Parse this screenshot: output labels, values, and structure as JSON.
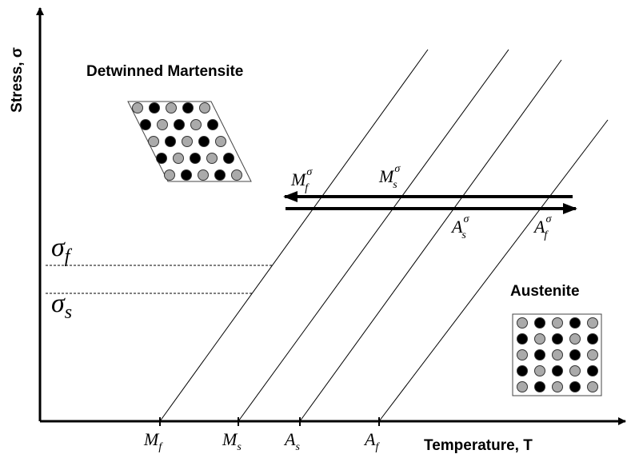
{
  "labels": {
    "y_axis": "Stress, σ",
    "x_axis": "Temperature, T",
    "phase_martensite": "Detwinned Martensite",
    "phase_austenite": "Austenite"
  },
  "stress_levels": [
    {
      "symbol": "σ",
      "sub": "f"
    },
    {
      "symbol": "σ",
      "sub": "s"
    }
  ],
  "temperature_ticks": [
    {
      "symbol": "M",
      "sub": "f"
    },
    {
      "symbol": "M",
      "sub": "s"
    },
    {
      "symbol": "A",
      "sub": "s"
    },
    {
      "symbol": "A",
      "sub": "f"
    }
  ],
  "transition_points": [
    {
      "symbol": "M",
      "sup": "σ",
      "sub": "f"
    },
    {
      "symbol": "M",
      "sup": "σ",
      "sub": "s"
    },
    {
      "symbol": "A",
      "sup": "σ",
      "sub": "s"
    },
    {
      "symbol": "A",
      "sup": "σ",
      "sub": "f"
    }
  ]
}
